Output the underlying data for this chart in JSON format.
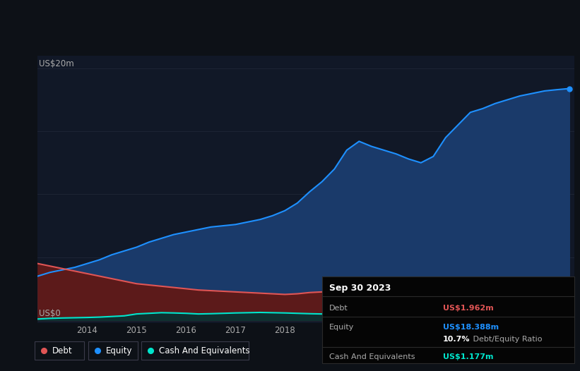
{
  "bg_color": "#0d1117",
  "plot_bg_color": "#111827",
  "y_label_20": "US$20m",
  "y_label_0": "US$0",
  "x_years": [
    2013.0,
    2013.25,
    2013.5,
    2013.75,
    2014.0,
    2014.25,
    2014.5,
    2014.75,
    2015.0,
    2015.25,
    2015.5,
    2015.75,
    2016.0,
    2016.25,
    2016.5,
    2016.75,
    2017.0,
    2017.25,
    2017.5,
    2017.75,
    2018.0,
    2018.25,
    2018.5,
    2018.75,
    2019.0,
    2019.25,
    2019.5,
    2019.75,
    2020.0,
    2020.25,
    2020.5,
    2020.75,
    2021.0,
    2021.25,
    2021.5,
    2021.75,
    2022.0,
    2022.25,
    2022.5,
    2022.75,
    2023.0,
    2023.25,
    2023.5,
    2023.75
  ],
  "equity": [
    3.5,
    3.8,
    4.0,
    4.2,
    4.5,
    4.8,
    5.2,
    5.5,
    5.8,
    6.2,
    6.5,
    6.8,
    7.0,
    7.2,
    7.4,
    7.5,
    7.6,
    7.8,
    8.0,
    8.3,
    8.7,
    9.3,
    10.2,
    11.0,
    12.0,
    13.5,
    14.2,
    13.8,
    13.5,
    13.2,
    12.8,
    12.5,
    13.0,
    14.5,
    15.5,
    16.5,
    16.8,
    17.2,
    17.5,
    17.8,
    18.0,
    18.2,
    18.3,
    18.388
  ],
  "debt": [
    4.5,
    4.3,
    4.1,
    3.9,
    3.7,
    3.5,
    3.3,
    3.1,
    2.9,
    2.8,
    2.7,
    2.6,
    2.5,
    2.4,
    2.35,
    2.3,
    2.25,
    2.2,
    2.15,
    2.1,
    2.05,
    2.1,
    2.2,
    2.25,
    2.3,
    2.4,
    2.5,
    2.6,
    2.7,
    2.75,
    2.6,
    2.4,
    2.2,
    2.1,
    2.0,
    1.95,
    1.9,
    1.85,
    2.1,
    2.3,
    2.1,
    1.9,
    1.8,
    1.962
  ],
  "cash": [
    0.1,
    0.15,
    0.18,
    0.2,
    0.22,
    0.25,
    0.3,
    0.35,
    0.5,
    0.55,
    0.6,
    0.58,
    0.55,
    0.5,
    0.52,
    0.55,
    0.58,
    0.6,
    0.62,
    0.6,
    0.58,
    0.55,
    0.52,
    0.5,
    0.48,
    0.45,
    0.42,
    0.4,
    0.35,
    0.3,
    0.28,
    0.25,
    0.3,
    0.4,
    0.5,
    0.6,
    0.65,
    0.7,
    0.75,
    0.8,
    0.85,
    1.0,
    1.1,
    1.177
  ],
  "equity_color": "#1e90ff",
  "debt_color": "#e05555",
  "cash_color": "#00e5cc",
  "equity_fill": "#1a3a6a",
  "debt_fill": "#5c1a1a",
  "cash_fill": "#0f3030",
  "grid_color": "#1e2535",
  "text_color": "#aaaaaa",
  "white": "#ffffff",
  "info_box_bg": "#050505",
  "info_box_border": "#2a2a2a",
  "info_box": {
    "date": "Sep 30 2023",
    "debt_label": "Debt",
    "debt_value": "US$1.962m",
    "equity_label": "Equity",
    "equity_value": "US$18.388m",
    "ratio_value": "10.7%",
    "ratio_label": " Debt/Equity Ratio",
    "cash_label": "Cash And Equivalents",
    "cash_value": "US$1.177m"
  },
  "legend": [
    {
      "label": "Debt",
      "color": "#e05555"
    },
    {
      "label": "Equity",
      "color": "#1e90ff"
    },
    {
      "label": "Cash And Equivalents",
      "color": "#00e5cc"
    }
  ],
  "xlim_min": 2013.0,
  "xlim_max": 2023.85,
  "ylim_min": -0.2,
  "ylim_max": 21.0
}
